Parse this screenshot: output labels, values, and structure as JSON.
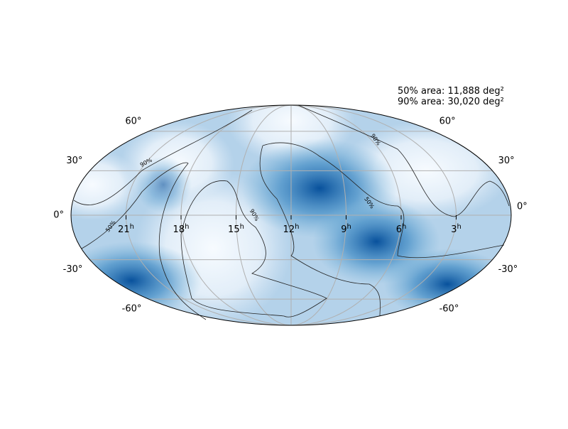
{
  "annotation": [
    "50% area: 11,888 deg²",
    "90% area: 30,020 deg²"
  ],
  "dec_ticks": [
    {
      "value": 60,
      "label": "60°"
    },
    {
      "value": 30,
      "label": "30°"
    },
    {
      "value": 0,
      "label": "0°"
    },
    {
      "value": -30,
      "label": "-30°"
    },
    {
      "value": -60,
      "label": "-60°"
    }
  ],
  "ra_ticks": [
    {
      "value": 21,
      "label": "21",
      "sup": "h"
    },
    {
      "value": 18,
      "label": "18",
      "sup": "h"
    },
    {
      "value": 15,
      "label": "15",
      "sup": "h"
    },
    {
      "value": 12,
      "label": "12",
      "sup": "h"
    },
    {
      "value": 9,
      "label": "9",
      "sup": "h"
    },
    {
      "value": 6,
      "label": "6",
      "sup": "h"
    },
    {
      "value": 3,
      "label": "3",
      "sup": "h"
    }
  ],
  "contour_labels": [
    "90%",
    "50%",
    "90%",
    "50%",
    "90%"
  ]
}
